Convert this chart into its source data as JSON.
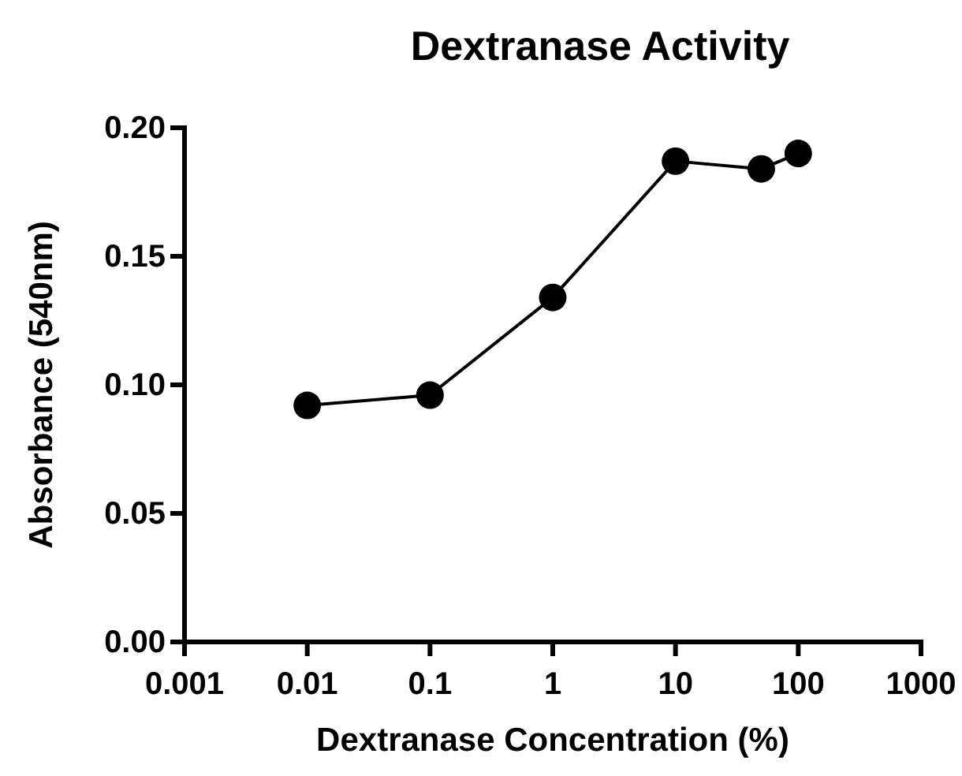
{
  "chart_data": {
    "type": "line",
    "title": "Dextranase Activity",
    "xlabel": "Dextranase Concentration (%)",
    "ylabel": "Absorbance (540nm)",
    "x": [
      0.01,
      0.1,
      1,
      10,
      50,
      100
    ],
    "series": [
      {
        "color": "#000000",
        "values": [
          0.092,
          0.096,
          0.134,
          0.187,
          0.184,
          0.19
        ]
      }
    ],
    "log": "x",
    "xlim": [
      0.001,
      1000
    ],
    "xticks": [
      0.001,
      0.01,
      0.1,
      1,
      10,
      100,
      1000
    ],
    "ylim": [
      0,
      0.2
    ],
    "yticks": [
      {
        "value": 0,
        "label": "0.00"
      },
      {
        "value": 0.05,
        "label": "0.05"
      },
      {
        "value": 0.1,
        "label": "0.10"
      },
      {
        "value": 0.15,
        "label": "0.15"
      },
      {
        "value": 0.2,
        "label": "0.20"
      }
    ],
    "marker": "circle",
    "line_style": "solid"
  }
}
